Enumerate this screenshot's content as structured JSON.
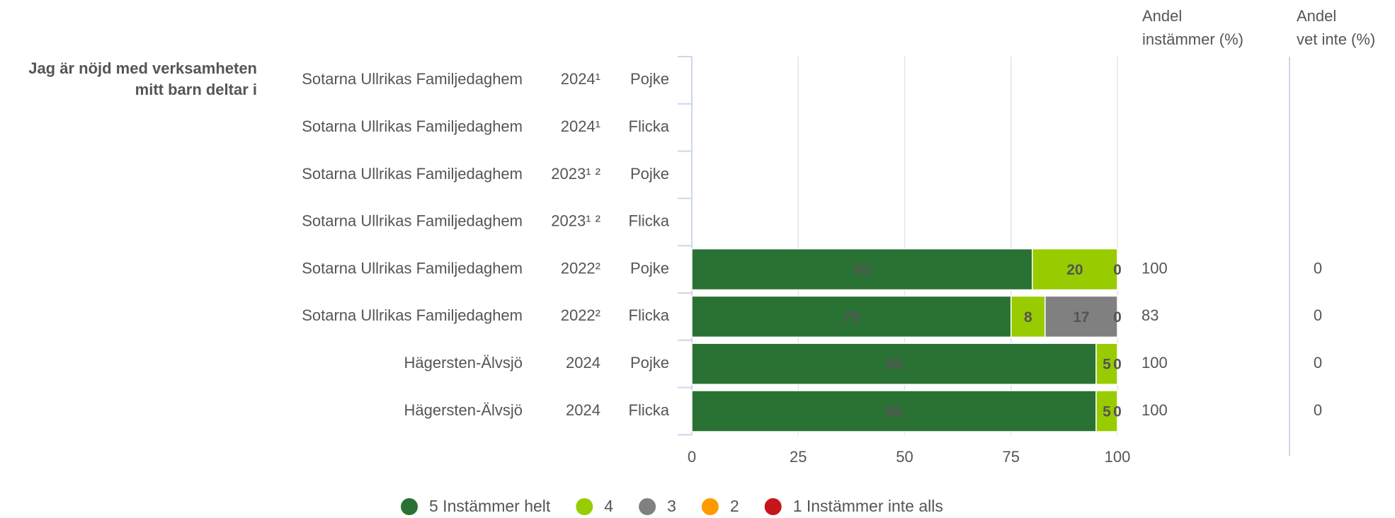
{
  "chart_data": {
    "type": "stacked-bar-horizontal",
    "question": [
      "Jag är nöjd med verksamheten",
      "mitt barn deltar i"
    ],
    "categories": [
      "Sotarna Ullrikas Familjedaghem",
      "Sotarna Ullrikas Familjedaghem",
      "Sotarna Ullrikas Familjedaghem",
      "Sotarna Ullrikas Familjedaghem",
      "Sotarna Ullrikas Familjedaghem",
      "Sotarna Ullrikas Familjedaghem",
      "Hägersten-Älvsjö",
      "Hägersten-Älvsjö"
    ],
    "years": [
      "2024¹",
      "2024¹",
      "2023¹ ²",
      "2023¹ ²",
      "2022²",
      "2022²",
      "2024",
      "2024"
    ],
    "groups": [
      "Pojke",
      "Flicka",
      "Pojke",
      "Flicka",
      "Pojke",
      "Flicka",
      "Pojke",
      "Flicka"
    ],
    "series": [
      {
        "name": "5 Instämmer helt",
        "color": "#2a7233",
        "values": [
          null,
          null,
          null,
          null,
          80,
          75,
          95,
          95
        ]
      },
      {
        "name": "4",
        "color": "#99cc00",
        "values": [
          null,
          null,
          null,
          null,
          20,
          8,
          5,
          5
        ]
      },
      {
        "name": "3",
        "color": "#808080",
        "values": [
          null,
          null,
          null,
          null,
          0,
          17,
          0,
          0
        ]
      },
      {
        "name": "2",
        "color": "#ff9900",
        "values": [
          null,
          null,
          null,
          null,
          null,
          0,
          null,
          null
        ]
      },
      {
        "name": "1 Instämmer inte alls",
        "color": "#c8141b",
        "values": [
          null,
          null,
          null,
          null,
          null,
          null,
          null,
          null
        ]
      }
    ],
    "xlim": [
      0,
      100
    ],
    "xticks": [
      0,
      25,
      50,
      75,
      100
    ],
    "grid": true,
    "columns": [
      {
        "header": [
          "Andel",
          "instämmer (%)"
        ],
        "values": [
          null,
          null,
          null,
          null,
          100,
          83,
          100,
          100
        ]
      },
      {
        "header": [
          "Andel",
          "vet inte (%)"
        ],
        "values": [
          null,
          null,
          null,
          null,
          0,
          0,
          0,
          0
        ]
      }
    ]
  }
}
